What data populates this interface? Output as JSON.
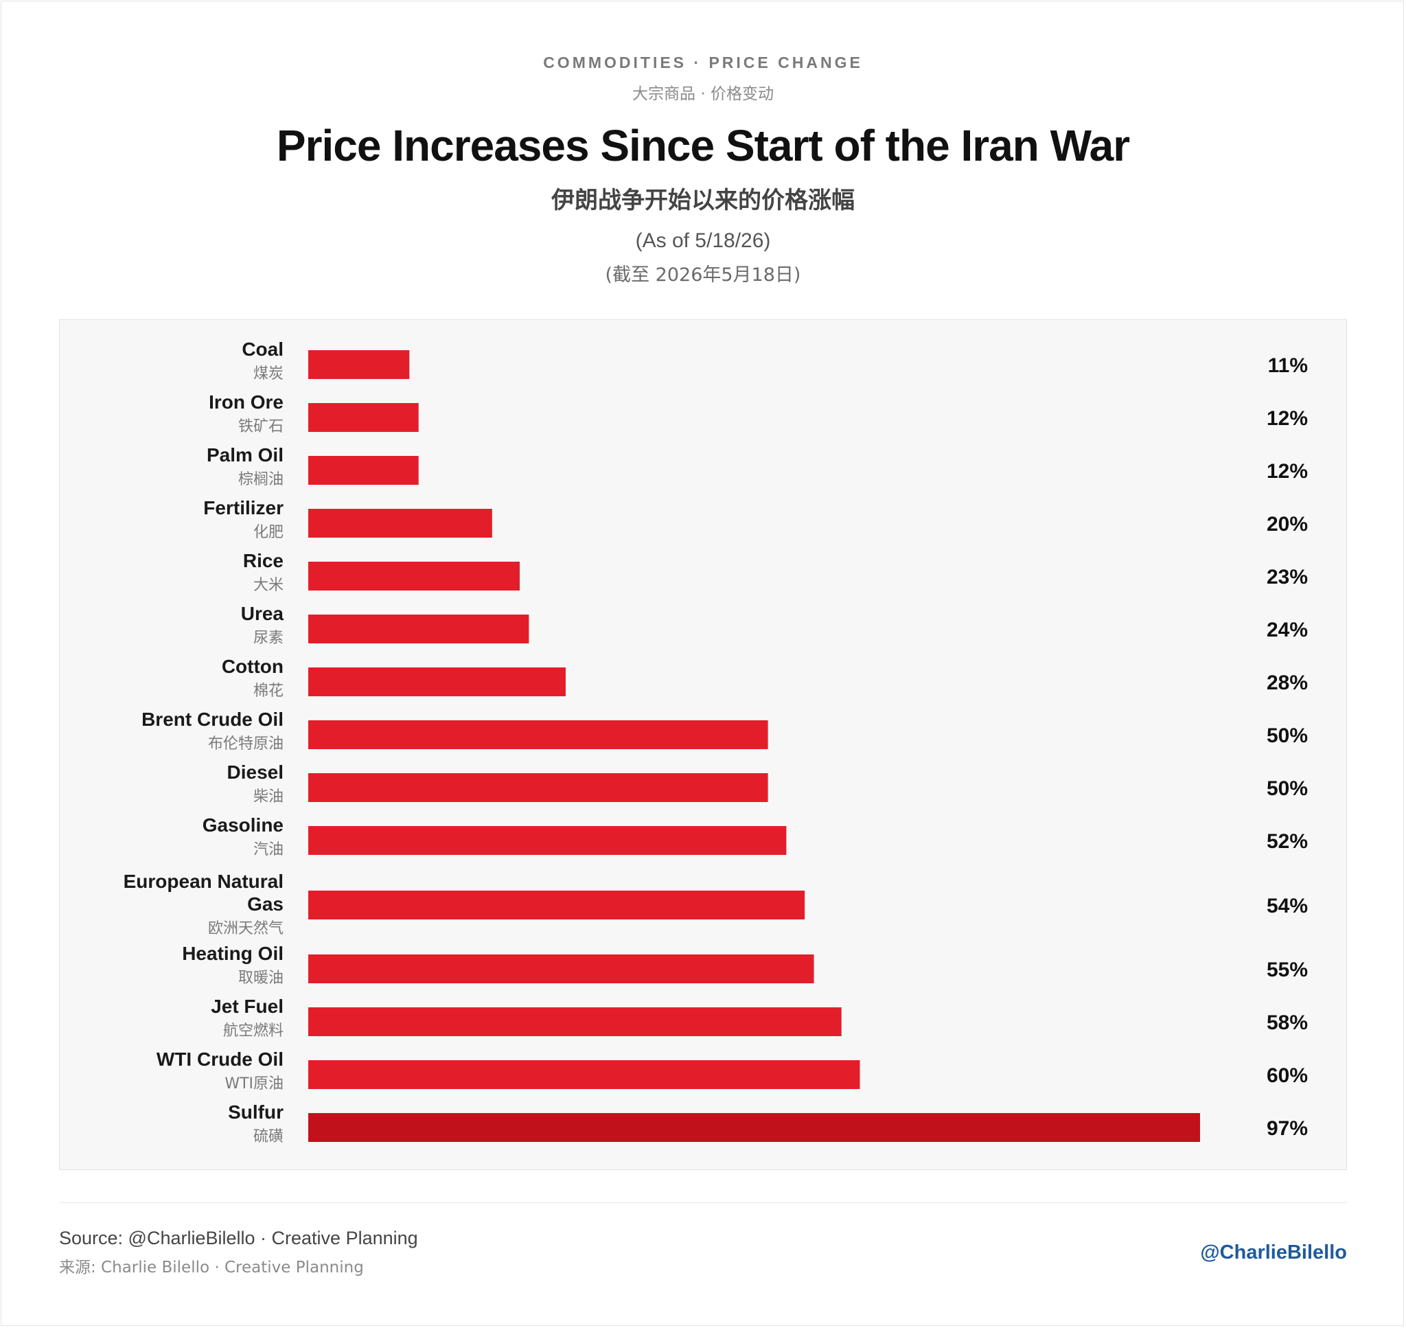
{
  "header": {
    "eyebrow": "COMMODITIES · PRICE CHANGE",
    "eyebrow_cn": "大宗商品 · 价格变动",
    "title": "Price Increases Since Start of the Iran War",
    "title_cn": "伊朗战争开始以来的价格涨幅",
    "as_of": "(As of 5/18/26)",
    "as_of_cn": "(截至 2026年5月18日)"
  },
  "chart_data": {
    "type": "bar",
    "orientation": "horizontal",
    "categories": [
      "Coal",
      "Iron Ore",
      "Palm Oil",
      "Fertilizer",
      "Rice",
      "Urea",
      "Cotton",
      "Brent Crude Oil",
      "Diesel",
      "Gasoline",
      "European Natural Gas",
      "Heating Oil",
      "Jet Fuel",
      "WTI Crude Oil",
      "Sulfur"
    ],
    "categories_cn": [
      "煤炭",
      "铁矿石",
      "棕榈油",
      "化肥",
      "大米",
      "尿素",
      "棉花",
      "布伦特原油",
      "柴油",
      "汽油",
      "欧洲天然气",
      "取暖油",
      "航空燃料",
      "WTI原油",
      "硫磺"
    ],
    "values": [
      11,
      12,
      12,
      20,
      23,
      24,
      28,
      50,
      50,
      52,
      54,
      55,
      58,
      60,
      97
    ],
    "value_labels": [
      "11%",
      "12%",
      "12%",
      "20%",
      "23%",
      "24%",
      "28%",
      "50%",
      "50%",
      "52%",
      "54%",
      "55%",
      "58%",
      "60%",
      "97%"
    ],
    "highlight": "Sulfur",
    "xlim": [
      0,
      100
    ],
    "grid": false,
    "legend": "none",
    "colors": {
      "bar": "#e31e2a",
      "highlight": "#c1121c"
    }
  },
  "footer": {
    "source": "Source: @CharlieBilello · Creative Planning",
    "source_cn": "来源: Charlie Bilello · Creative Planning",
    "handle": "@CharlieBilello"
  }
}
